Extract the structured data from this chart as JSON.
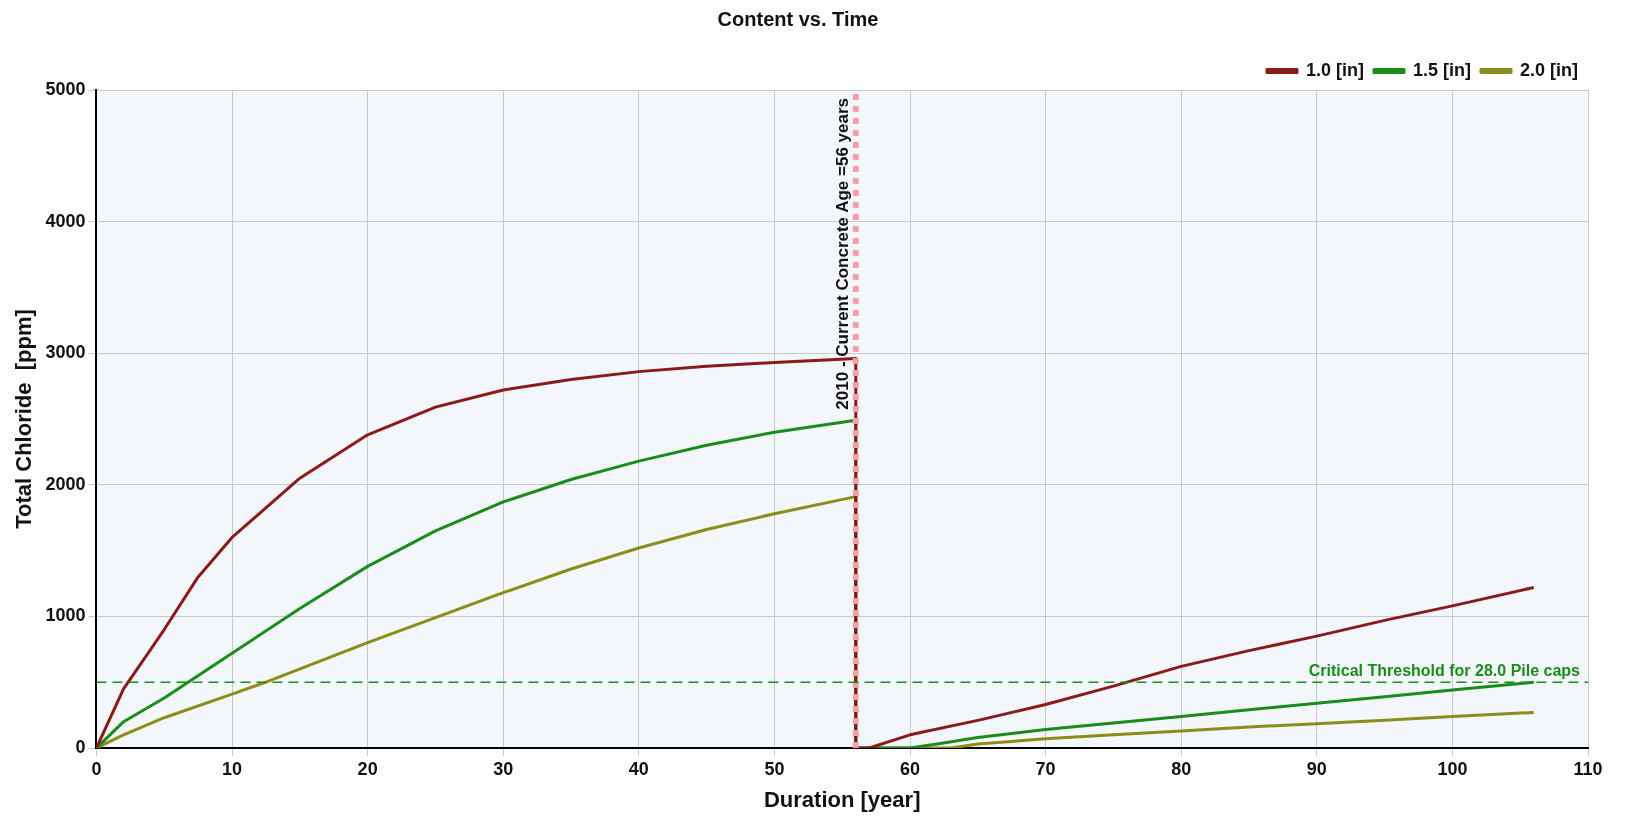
{
  "chart_data": {
    "type": "line",
    "title": "Content vs. Time",
    "xlabel": "Duration [year]",
    "ylabel": "Total Chloride  [ppm]",
    "xlim": [
      0,
      110
    ],
    "xticks": [
      0,
      10,
      20,
      30,
      40,
      50,
      60,
      70,
      80,
      90,
      100,
      110
    ],
    "ylim": [
      0,
      5000
    ],
    "yticks": [
      0,
      1000,
      2000,
      3000,
      4000,
      5000
    ],
    "grid": true,
    "legend": "top right",
    "marker": "none",
    "line_style": "solid",
    "series": [
      {
        "name": "1.0 [in]",
        "color": "#8b1a1a",
        "x": [
          0,
          2,
          5,
          7.5,
          10,
          15,
          20,
          25,
          30,
          35,
          40,
          45,
          50,
          56,
          56,
          57,
          60,
          65,
          70,
          75,
          80,
          85,
          90,
          95,
          100,
          106
        ],
        "values": [
          0,
          450,
          900,
          1300,
          1600,
          2050,
          2380,
          2590,
          2720,
          2800,
          2860,
          2900,
          2930,
          2960,
          0,
          0,
          100,
          210,
          330,
          470,
          620,
          740,
          850,
          970,
          1080,
          1220
        ]
      },
      {
        "name": "1.5 [in]",
        "color": "#1a8c1a",
        "x": [
          0,
          1,
          2,
          5,
          10,
          15,
          20,
          25,
          30,
          35,
          40,
          45,
          50,
          56,
          56,
          60,
          62,
          65,
          70,
          75,
          80,
          85,
          90,
          95,
          100,
          106
        ],
        "values": [
          0,
          100,
          200,
          380,
          720,
          1060,
          1380,
          1650,
          1870,
          2040,
          2180,
          2300,
          2400,
          2490,
          0,
          0,
          30,
          80,
          140,
          190,
          240,
          290,
          340,
          390,
          440,
          500
        ]
      },
      {
        "name": "2.0 [in]",
        "color": "#8c8c1a",
        "x": [
          0,
          2,
          5,
          10,
          12.5,
          20,
          25,
          30,
          35,
          40,
          45,
          50,
          56,
          56,
          63,
          65,
          70,
          75,
          80,
          85,
          90,
          95,
          100,
          106
        ],
        "values": [
          0,
          100,
          230,
          410,
          500,
          800,
          990,
          1180,
          1360,
          1520,
          1660,
          1780,
          1910,
          0,
          0,
          30,
          70,
          100,
          130,
          160,
          185,
          210,
          240,
          270
        ]
      }
    ],
    "ref_lines": [
      {
        "axis": "x",
        "value": 56,
        "label": "2010 - Current Concrete Age =56 years",
        "color": "#f0a0a8",
        "line_style": "dotted"
      },
      {
        "axis": "y",
        "value": 500,
        "label": "Critical Threshold for 28.0 Pile caps",
        "color": "#1a8c1a",
        "line_style": "dashed"
      }
    ]
  }
}
